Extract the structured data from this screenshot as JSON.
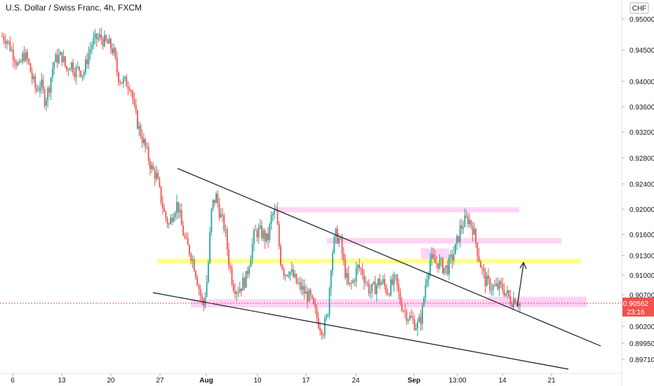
{
  "header": {
    "title": "U.S. Dollar / Swiss Franc, 4h, FXCM"
  },
  "currency_badge": "CHF",
  "price_badge": {
    "price": "0.90562",
    "countdown": "23:16"
  },
  "colors": {
    "up": "#26a69a",
    "down": "#ef5350",
    "zone_pink": "#ffccf5",
    "zone_yellow": "#ffff80",
    "trendline": "#131722",
    "price_line": "#ef5350"
  },
  "chart_data": {
    "type": "candlestick",
    "title": "U.S. Dollar / Swiss Franc, 4h, FXCM",
    "symbol": "USDCHF",
    "interval": "4h",
    "y_axis": {
      "ticks": [
        "0.95000",
        "0.94500",
        "0.94000",
        "0.93600",
        "0.93200",
        "0.92800",
        "0.92400",
        "0.92000",
        "0.91600",
        "0.91300",
        "0.91000",
        "0.90700",
        "0.90200",
        "0.89950",
        "0.89710"
      ],
      "range": [
        0.896,
        0.951
      ]
    },
    "x_axis": {
      "ticks": [
        {
          "label": "6",
          "bold": false
        },
        {
          "label": "13",
          "bold": false
        },
        {
          "label": "20",
          "bold": false
        },
        {
          "label": "27",
          "bold": false
        },
        {
          "label": "Aug",
          "bold": true
        },
        {
          "label": "10",
          "bold": false
        },
        {
          "label": "17",
          "bold": false
        },
        {
          "label": "24",
          "bold": false
        },
        {
          "label": "Sep",
          "bold": true
        },
        {
          "label": "13:00",
          "bold": false
        },
        {
          "label": "14",
          "bold": false
        },
        {
          "label": "21",
          "bold": false
        }
      ]
    },
    "price_path": [
      0.9472,
      0.9468,
      0.9452,
      0.9438,
      0.942,
      0.9444,
      0.9432,
      0.9405,
      0.9385,
      0.9398,
      0.937,
      0.9392,
      0.943,
      0.9438,
      0.944,
      0.9418,
      0.943,
      0.9416,
      0.942,
      0.9412,
      0.944,
      0.946,
      0.9468,
      0.947,
      0.9462,
      0.9458,
      0.9448,
      0.941,
      0.94,
      0.9398,
      0.9395,
      0.935,
      0.9325,
      0.9305,
      0.9283,
      0.9262,
      0.9253,
      0.922,
      0.919,
      0.9175,
      0.9197,
      0.921,
      0.917,
      0.9145,
      0.9135,
      0.9112,
      0.908,
      0.905,
      0.91,
      0.9205,
      0.922,
      0.919,
      0.917,
      0.912,
      0.9085,
      0.9078,
      0.9085,
      0.9095,
      0.913,
      0.9162,
      0.9165,
      0.916,
      0.915,
      0.919,
      0.9195,
      0.9125,
      0.9103,
      0.9108,
      0.9098,
      0.9085,
      0.908,
      0.907,
      0.9065,
      0.9045,
      0.9025,
      0.9015,
      0.9035,
      0.913,
      0.916,
      0.915,
      0.911,
      0.908,
      0.909,
      0.9112,
      0.9108,
      0.909,
      0.9075,
      0.908,
      0.909,
      0.9088,
      0.9075,
      0.9085,
      0.9092,
      0.906,
      0.9045,
      0.9035,
      0.9028,
      0.902,
      0.9035,
      0.909,
      0.9125,
      0.9118,
      0.912,
      0.9112,
      0.911,
      0.9125,
      0.914,
      0.9168,
      0.918,
      0.9185,
      0.917,
      0.914,
      0.911,
      0.909,
      0.9085,
      0.908,
      0.9082,
      0.908,
      0.907,
      0.906,
      0.9065,
      0.9056
    ],
    "annotations": [
      {
        "type": "zone",
        "color": "yellow",
        "price_low": 0.9118,
        "price_high": 0.9125
      },
      {
        "type": "zone",
        "color": "pink",
        "price_low": 0.9195,
        "price_high": 0.9203
      },
      {
        "type": "zone",
        "color": "pink",
        "price_low": 0.9147,
        "price_high": 0.9155
      },
      {
        "type": "zone",
        "color": "pink",
        "price_low": 0.905,
        "price_high": 0.9063
      },
      {
        "type": "zone",
        "color": "pink",
        "price_low": 0.9052,
        "price_high": 0.9067
      },
      {
        "type": "zone",
        "color": "pink",
        "price_low": 0.9125,
        "price_high": 0.914
      },
      {
        "type": "trendline",
        "role": "upper"
      },
      {
        "type": "trendline",
        "role": "lower"
      },
      {
        "type": "arrow",
        "direction": "up"
      }
    ],
    "last_price": 0.90562,
    "grid": false
  }
}
